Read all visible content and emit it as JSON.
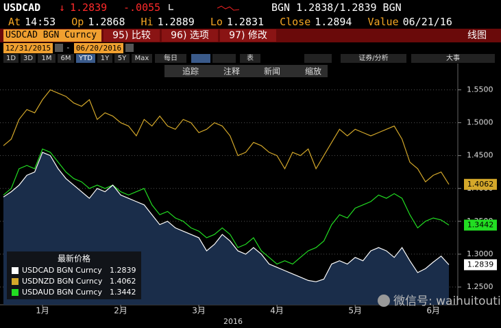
{
  "header": {
    "ticker": "USDCAD",
    "arrow": "↓",
    "last": "1.2839",
    "change": "-.0055",
    "quote": "BGN 1.2838/1.2839 BGN"
  },
  "stats": [
    {
      "label": "At",
      "value": "14:53"
    },
    {
      "label": "Op",
      "value": "1.2868"
    },
    {
      "label": "Hi",
      "value": "1.2889"
    },
    {
      "label": "Lo",
      "value": "1.2831"
    },
    {
      "label": "Close",
      "value": "1.2894"
    },
    {
      "label": "Value",
      "value": "06/21/16"
    }
  ],
  "security": "USDCAD BGN Curncy",
  "menu": [
    "95) 比较",
    "96) 选项",
    "97) 修改"
  ],
  "menu_right": "线图",
  "dates": [
    "12/31/2015",
    "06/20/2016"
  ],
  "periods": [
    "1D",
    "3D",
    "1M",
    "6M",
    "YTD",
    "1Y",
    "5Y",
    "Max"
  ],
  "frequency": "每日",
  "toolbar_right": [
    "表",
    "证券/分析",
    "大事"
  ],
  "chart_tools": [
    "追踪",
    "注释",
    "新闻",
    "缩放"
  ],
  "chart_data": {
    "type": "line",
    "categories": [
      null,
      null,
      null,
      null,
      null,
      "1月",
      null,
      null,
      null,
      null,
      null,
      null,
      null,
      null,
      null,
      "2月",
      null,
      null,
      null,
      null,
      null,
      null,
      null,
      null,
      null,
      "3月",
      null,
      null,
      null,
      null,
      null,
      null,
      null,
      null,
      null,
      "4月",
      null,
      null,
      null,
      null,
      null,
      null,
      null,
      null,
      null,
      "5月",
      null,
      null,
      null,
      null,
      null,
      null,
      null,
      null,
      null,
      "6月",
      null,
      null
    ],
    "x_label": "2016",
    "series": [
      {
        "name": "USDCAD BGN Curncy",
        "color": "#ffffff",
        "fill": "#1a2d4a",
        "values": [
          1.387,
          1.395,
          1.405,
          1.42,
          1.425,
          1.455,
          1.45,
          1.43,
          1.415,
          1.405,
          1.395,
          1.385,
          1.4,
          1.395,
          1.405,
          1.39,
          1.385,
          1.38,
          1.375,
          1.36,
          1.345,
          1.35,
          1.34,
          1.335,
          1.33,
          1.325,
          1.305,
          1.315,
          1.33,
          1.32,
          1.305,
          1.3,
          1.31,
          1.3,
          1.285,
          1.28,
          1.275,
          1.27,
          1.265,
          1.26,
          1.258,
          1.262,
          1.285,
          1.29,
          1.285,
          1.295,
          1.29,
          1.305,
          1.31,
          1.305,
          1.295,
          1.31,
          1.29,
          1.272,
          1.278,
          1.288,
          1.297,
          1.2839
        ]
      },
      {
        "name": "USDNZD BGN Curncy",
        "color": "#d4a82a",
        "values": [
          1.465,
          1.475,
          1.505,
          1.52,
          1.515,
          1.535,
          1.55,
          1.545,
          1.54,
          1.53,
          1.525,
          1.535,
          1.505,
          1.515,
          1.51,
          1.5,
          1.495,
          1.48,
          1.505,
          1.495,
          1.51,
          1.495,
          1.49,
          1.505,
          1.5,
          1.485,
          1.49,
          1.5,
          1.495,
          1.48,
          1.45,
          1.455,
          1.47,
          1.465,
          1.455,
          1.45,
          1.43,
          1.455,
          1.45,
          1.46,
          1.43,
          1.45,
          1.47,
          1.49,
          1.48,
          1.49,
          1.485,
          1.48,
          1.485,
          1.49,
          1.495,
          1.475,
          1.44,
          1.43,
          1.41,
          1.42,
          1.425,
          1.4062
        ]
      },
      {
        "name": "USDAUD BGN Curncy",
        "color": "#22dd22",
        "values": [
          1.39,
          1.4,
          1.43,
          1.435,
          1.43,
          1.46,
          1.455,
          1.44,
          1.425,
          1.415,
          1.41,
          1.4,
          1.405,
          1.4,
          1.405,
          1.395,
          1.39,
          1.395,
          1.4,
          1.375,
          1.36,
          1.365,
          1.355,
          1.35,
          1.34,
          1.335,
          1.325,
          1.33,
          1.34,
          1.33,
          1.31,
          1.315,
          1.325,
          1.305,
          1.295,
          1.285,
          1.29,
          1.285,
          1.295,
          1.305,
          1.31,
          1.32,
          1.345,
          1.36,
          1.355,
          1.37,
          1.375,
          1.38,
          1.39,
          1.385,
          1.392,
          1.385,
          1.36,
          1.34,
          1.35,
          1.355,
          1.352,
          1.3442
        ]
      }
    ],
    "ylim": [
      1.223,
      1.59
    ],
    "yticks": [
      {
        "value": 1.25,
        "label": "1.2500"
      },
      {
        "value": 1.3,
        "label": "1.3000"
      },
      {
        "value": 1.35,
        "label": "1.3500"
      },
      {
        "value": 1.4,
        "label": "1.4000"
      },
      {
        "value": 1.45,
        "label": "1.4500"
      },
      {
        "value": 1.5,
        "label": "1.5000"
      },
      {
        "value": 1.55,
        "label": "1.5500"
      }
    ],
    "grid": true,
    "legend_title": "最新价格",
    "legend": "bottom-left"
  },
  "watermark": "微信号: waihuitoutiao"
}
